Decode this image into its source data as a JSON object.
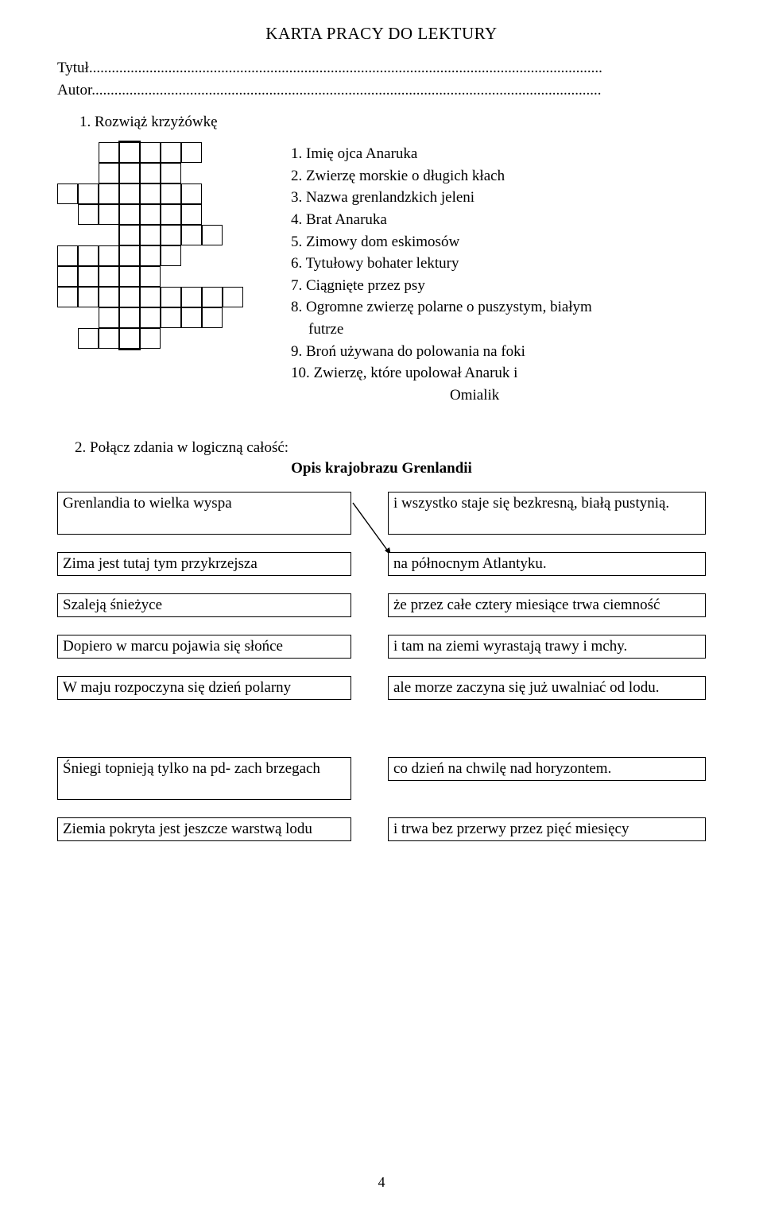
{
  "title": "KARTA  PRACY  DO  LEKTURY",
  "label_title": "Tytuł........................................................................................................................................",
  "label_author": "Autor.......................................................................................................................................",
  "task1": "1.   Rozwiąż  krzyżówkę",
  "clues": [
    "1. Imię ojca Anaruka",
    "2. Zwierzę morskie o długich kłach",
    "3. Nazwa grenlandzkich jeleni",
    "4. Brat Anaruka",
    "5. Zimowy dom eskimosów",
    "6. Tytułowy bohater lektury",
    "7. Ciągnięte przez psy",
    "8. Ogromne zwierzę polarne o puszystym, białym",
    "    futrze",
    "9. Broń używana  do polowania na foki",
    "10. Zwierzę, które upolował Anaruk i"
  ],
  "clue_omialik": "Omialik",
  "task2_lead": "2. Połącz zdania w logiczną całość:",
  "task2_title": "Opis krajobrazu Grenlandii",
  "pairs": [
    {
      "left": "Grenlandia to wielka wyspa",
      "right": "i  wszystko staje się bezkresną, białą pustynią."
    },
    {
      "left": "Zima jest tutaj tym przykrzejsza",
      "right": "na północnym Atlantyku."
    },
    {
      "left": "Szaleją śnieżyce",
      "right": "że przez całe cztery miesiące trwa ciemność"
    },
    {
      "left": "Dopiero w marcu pojawia się słońce",
      "right": "i tam na ziemi wyrastają trawy i mchy."
    },
    {
      "left": "W maju rozpoczyna się dzień polarny",
      "right": "ale morze zaczyna się już uwalniać od lodu."
    },
    {
      "left": "Śniegi topnieją tylko na pd- zach brzegach",
      "right": "co dzień na chwilę nad horyzontem."
    },
    {
      "left": "Ziemia pokryta jest jeszcze warstwą lodu",
      "right": "i trwa bez przerwy przez pięć miesięcy"
    }
  ],
  "crossword": {
    "cell": 26,
    "rows": [
      {
        "offset": 2,
        "len": 5
      },
      {
        "offset": 2,
        "len": 4
      },
      {
        "offset": 0,
        "len": 7
      },
      {
        "offset": 1,
        "len": 6
      },
      {
        "offset": 3,
        "len": 5
      },
      {
        "offset": 0,
        "len": 6
      },
      {
        "offset": 0,
        "len": 5
      },
      {
        "offset": 0,
        "len": 9
      },
      {
        "offset": 2,
        "len": 6
      },
      {
        "offset": 1,
        "len": 4
      }
    ],
    "solution_col": 3,
    "max_cols": 9
  },
  "page_number": "4"
}
